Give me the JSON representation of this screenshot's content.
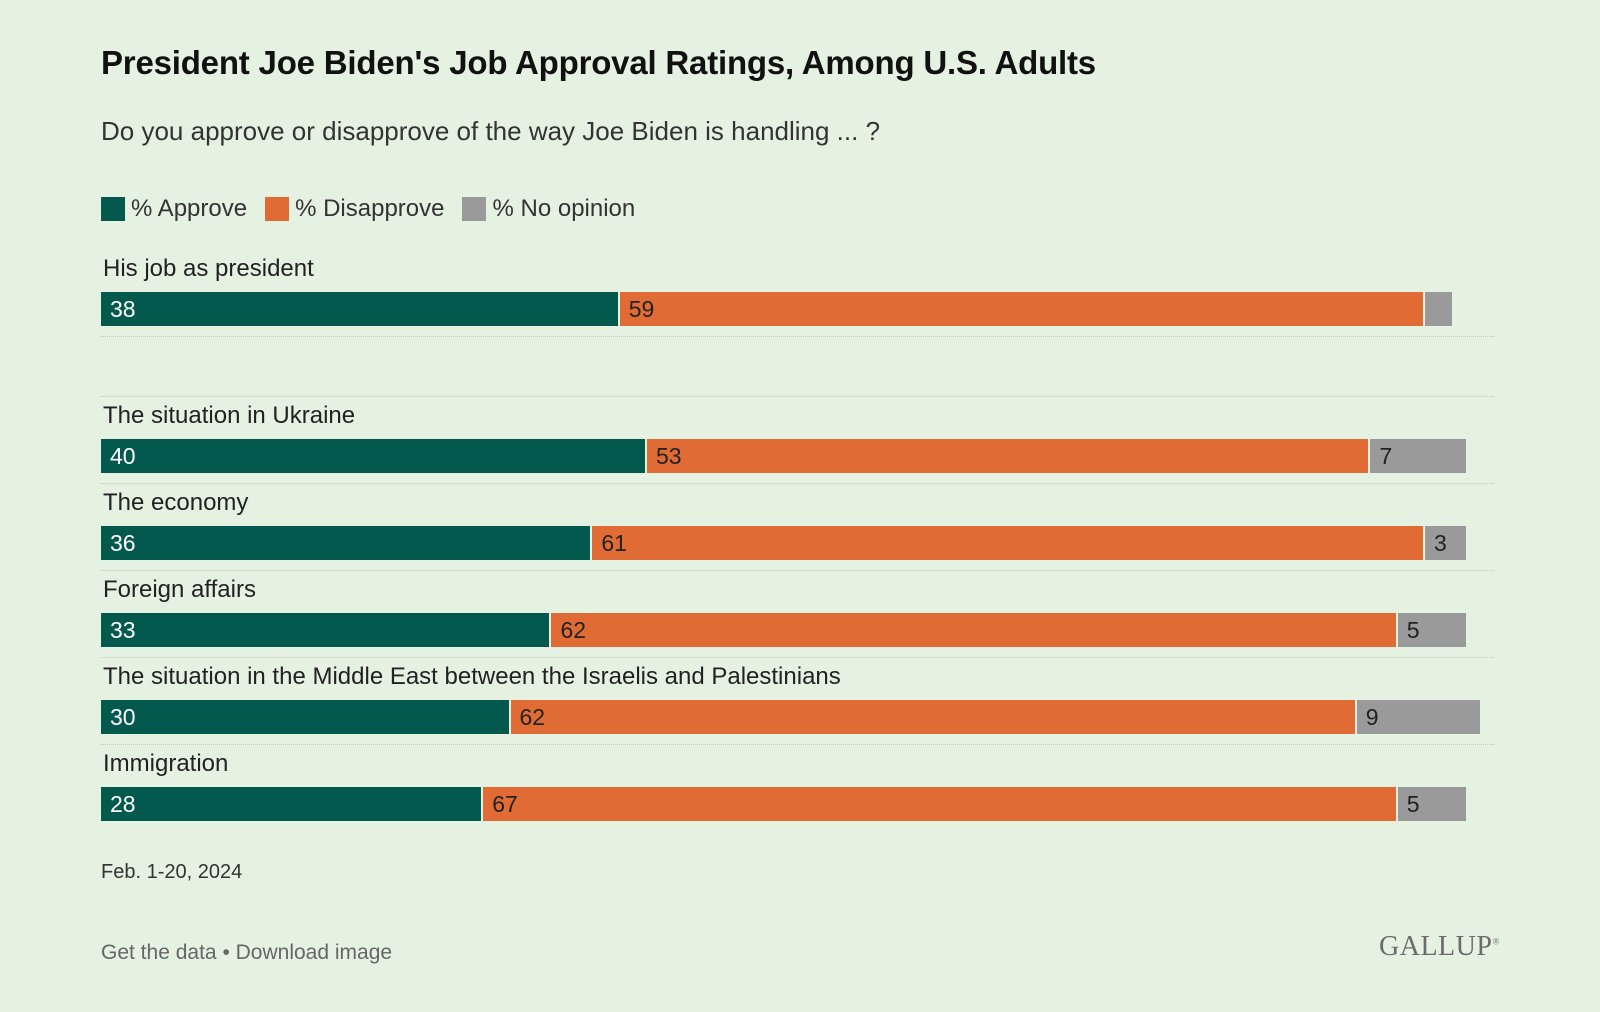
{
  "title": "President Joe Biden's Job Approval Ratings, Among U.S. Adults",
  "subtitle": "Do you approve or disapprove of the way Joe Biden is handling ... ?",
  "colors": {
    "approve": "#04594f",
    "disapprove": "#e06b35",
    "no_opinion": "#9a9a9a",
    "background": "#e5f2e1"
  },
  "legend": [
    {
      "label": "% Approve",
      "color": "#04594f"
    },
    {
      "label": "% Disapprove",
      "color": "#e06b35"
    },
    {
      "label": "% No opinion",
      "color": "#9a9a9a"
    }
  ],
  "chart_data": {
    "type": "bar",
    "orientation": "horizontal",
    "stacked": true,
    "title": "President Joe Biden's Job Approval Ratings, Among U.S. Adults",
    "subtitle": "Do you approve or disapprove of the way Joe Biden is handling ... ?",
    "categories": [
      "His job as president",
      "The situation in Ukraine",
      "The economy",
      "Foreign affairs",
      "The situation in the Middle East between the Israelis and Palestinians",
      "Immigration"
    ],
    "series": [
      {
        "name": "% Approve",
        "values": [
          38,
          40,
          36,
          33,
          30,
          28
        ]
      },
      {
        "name": "% Disapprove",
        "values": [
          59,
          53,
          61,
          62,
          62,
          67
        ]
      },
      {
        "name": "% No opinion",
        "values": [
          2,
          7,
          3,
          5,
          9,
          5
        ]
      }
    ],
    "value_labels": [
      [
        "38",
        "59",
        ""
      ],
      [
        "40",
        "53",
        "7"
      ],
      [
        "36",
        "61",
        "3"
      ],
      [
        "33",
        "62",
        "5"
      ],
      [
        "30",
        "62",
        "9"
      ],
      [
        "28",
        "67",
        "5"
      ]
    ],
    "xlim": [
      0,
      100
    ],
    "xlabel": "",
    "ylabel": "",
    "grid": false,
    "legend_position": "top-left"
  },
  "footnote": {
    "date": "Feb. 1-20, 2024"
  },
  "footer": {
    "get_data": "Get the data",
    "separator": "•",
    "download": "Download image",
    "logo": "GALLUP"
  }
}
